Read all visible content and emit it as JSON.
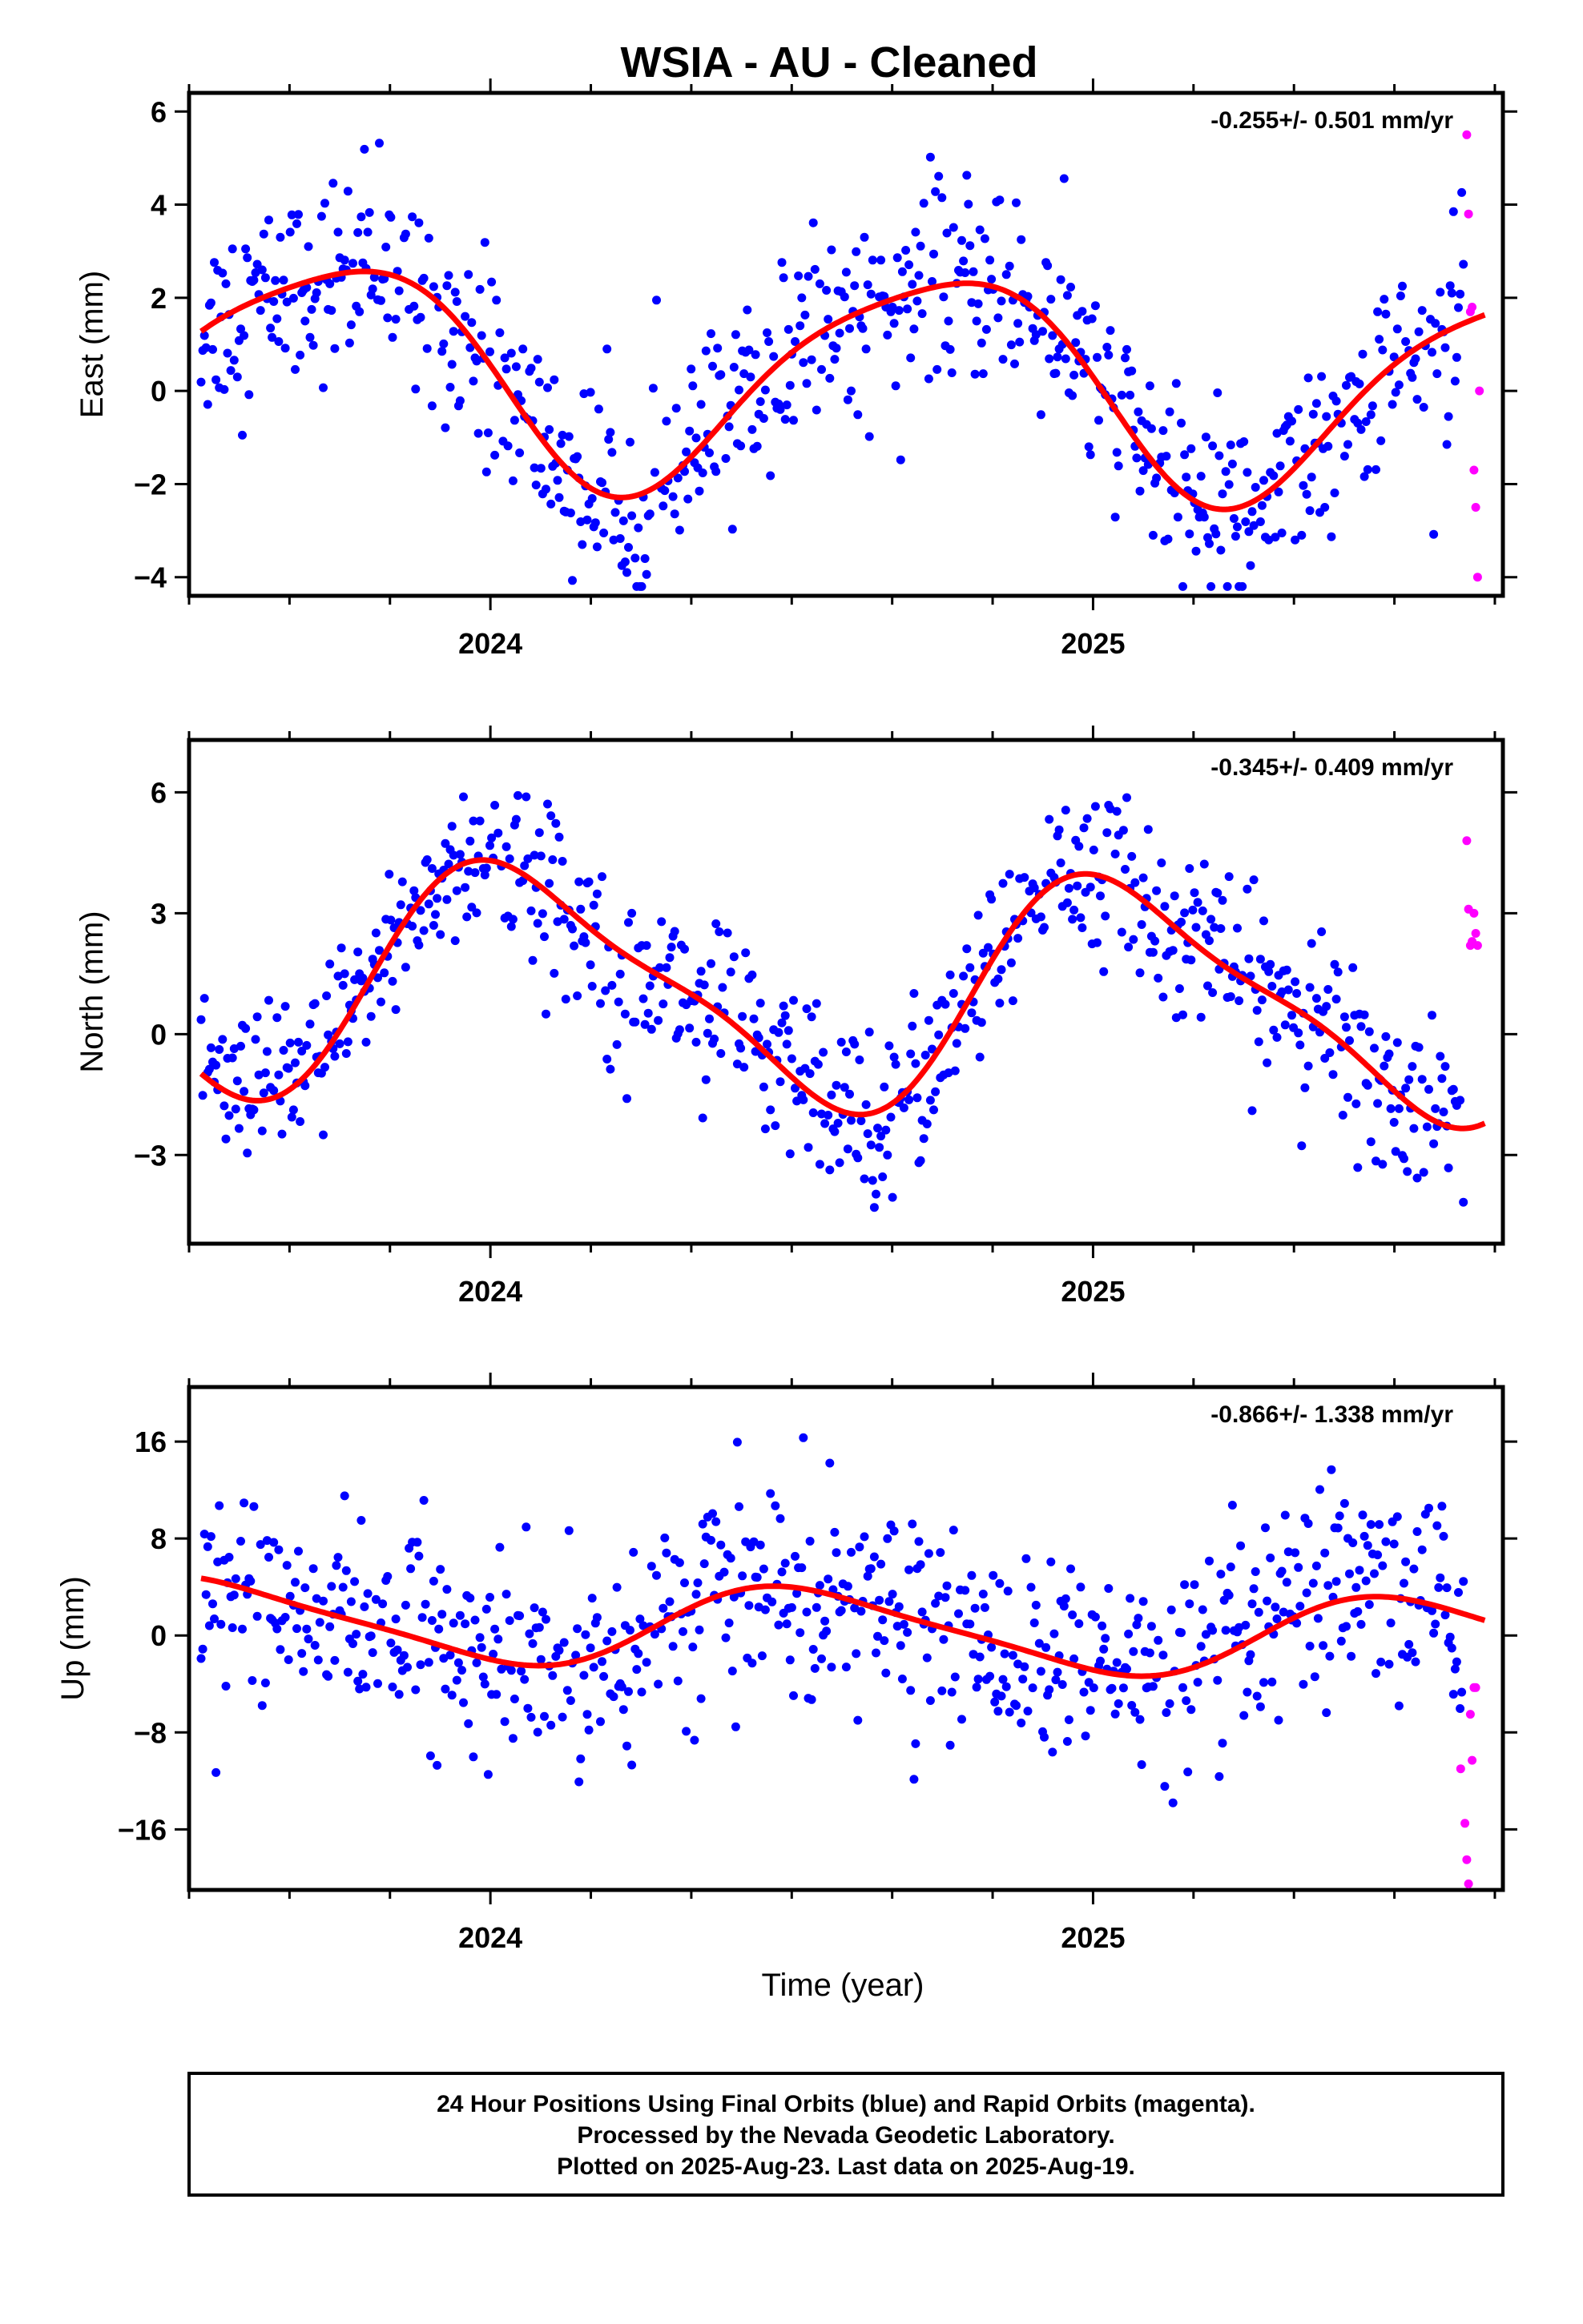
{
  "title": "WSIA  - AU - Cleaned",
  "colors": {
    "final": "#0000ff",
    "rapid": "#ff00ff",
    "fit": "#ff0000"
  },
  "chart_data": [
    {
      "type": "scatter",
      "ylabel": "East (mm)",
      "rate_text": "-0.255+/- 0.501 mm/yr",
      "xlim": [
        2023.5,
        2025.68
      ],
      "ylim": [
        -4.4,
        6.4
      ],
      "yticks": [
        -4,
        -2,
        0,
        2,
        4,
        6
      ],
      "ytick_labels": [
        "−4",
        "−2",
        "0",
        "2",
        "4",
        "6"
      ],
      "xticks": [
        2024,
        2025
      ],
      "xtick_labels": [
        "2024",
        "2025"
      ],
      "fit": {
        "offset": 0.3,
        "trend": -0.255,
        "t0": 2024.6,
        "ann_sin": -2.3,
        "ann_cos": -0.2,
        "semi_sin": -0.3,
        "semi_cos": 0.3,
        "t_start": 2023.52,
        "t_end": 2025.65
      },
      "series": [
        {
          "name": "Final Orbits",
          "color": "#0000ff",
          "x": [],
          "y": []
        },
        {
          "name": "Rapid Orbits",
          "color": "#ff00ff",
          "x": [
            2025.62,
            2025.623,
            2025.626,
            2025.629,
            2025.632,
            2025.635,
            2025.638,
            2025.641
          ],
          "y": [
            5.5,
            3.8,
            1.7,
            1.8,
            -1.7,
            -2.5,
            -4.0,
            0.0
          ]
        }
      ]
    },
    {
      "type": "scatter",
      "ylabel": "North (mm)",
      "rate_text": "-0.345+/- 0.409 mm/yr",
      "xlim": [
        2023.5,
        2025.68
      ],
      "ylim": [
        -5.2,
        7.3
      ],
      "yticks": [
        -3,
        0,
        3,
        6
      ],
      "ytick_labels": [
        "−3",
        "0",
        "3",
        "6"
      ],
      "xticks": [
        2024,
        2025
      ],
      "xtick_labels": [
        "2024",
        "2025"
      ],
      "fit": {
        "offset": 1.1,
        "trend": -0.345,
        "t0": 2024.6,
        "ann_sin": 0.9,
        "ann_cos": 2.6,
        "semi_sin": -0.6,
        "semi_cos": 0.4,
        "t_start": 2023.52,
        "t_end": 2025.65
      },
      "series": [
        {
          "name": "Final Orbits",
          "color": "#0000ff",
          "x": [],
          "y": []
        },
        {
          "name": "Rapid Orbits",
          "color": "#ff00ff",
          "x": [
            2025.62,
            2025.623,
            2025.626,
            2025.629,
            2025.632,
            2025.635,
            2025.638
          ],
          "y": [
            4.8,
            3.1,
            2.2,
            2.3,
            3.0,
            2.5,
            2.2
          ]
        }
      ]
    },
    {
      "type": "scatter",
      "ylabel": "Up (mm)",
      "rate_text": "-0.866+/- 1.338 mm/yr",
      "xlim": [
        2023.5,
        2025.68
      ],
      "ylim": [
        -21,
        20.5
      ],
      "yticks": [
        -16,
        -8,
        0,
        8,
        16
      ],
      "ytick_labels": [
        "−16",
        "−8",
        "0",
        "8",
        "16"
      ],
      "xticks": [
        2024,
        2025
      ],
      "xtick_labels": [
        "2024",
        "2025"
      ],
      "xlabel": "Time (year)",
      "fit": {
        "offset": 0.5,
        "trend": -0.866,
        "t0": 2024.6,
        "ann_sin": -0.5,
        "ann_cos": -3.2,
        "semi_sin": -0.6,
        "semi_cos": 0.2,
        "t_start": 2023.52,
        "t_end": 2025.65
      },
      "series": [
        {
          "name": "Final Orbits",
          "color": "#0000ff",
          "x": [],
          "y": []
        },
        {
          "name": "Rapid Orbits",
          "color": "#ff00ff",
          "x": [
            2025.61,
            2025.617,
            2025.62,
            2025.623,
            2025.626,
            2025.629,
            2025.632,
            2025.635
          ],
          "y": [
            -11.0,
            -15.5,
            -18.5,
            -20.5,
            -6.5,
            -10.3,
            -4.3,
            -4.3
          ]
        }
      ]
    }
  ],
  "footer": {
    "line1": "24 Hour Positions Using Final Orbits (blue) and Rapid Orbits (magenta).",
    "line2": "Processed by the Nevada Geodetic Laboratory.",
    "line3": "Plotted on 2025-Aug-23. Last data on 2025-Aug-19."
  }
}
